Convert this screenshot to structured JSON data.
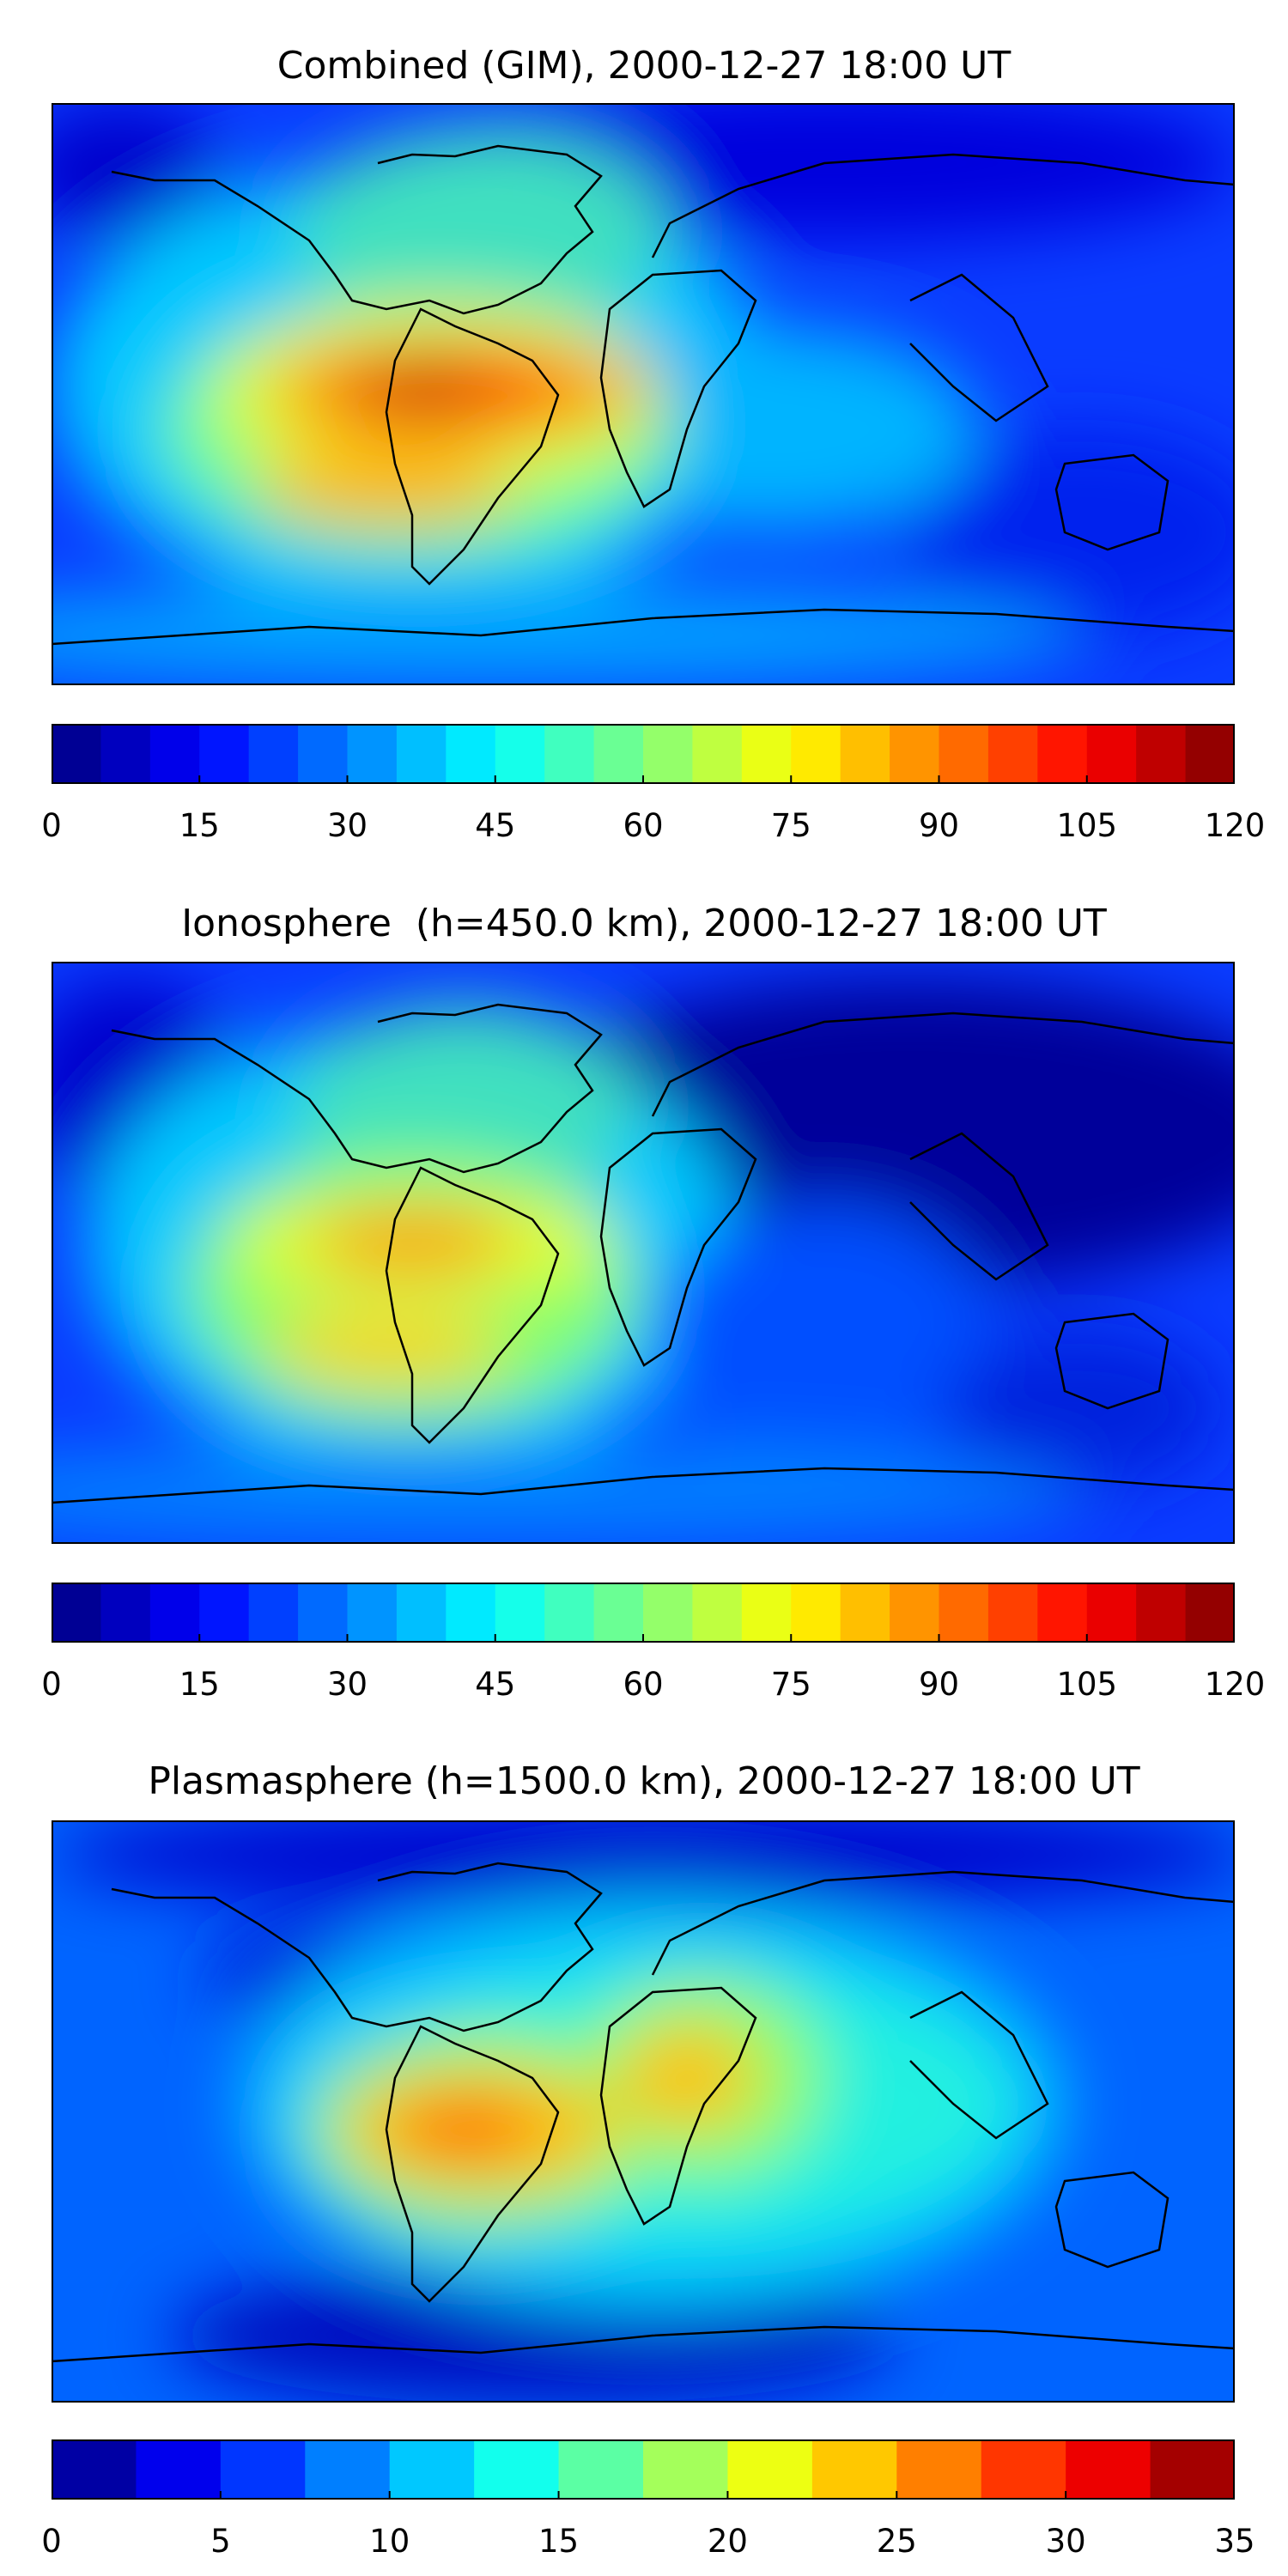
{
  "panels": [
    {
      "title": "Combined (GIM), 2000-12-27 18:00 UT",
      "colorbar": {
        "min": 0,
        "max": 120,
        "levels": 24,
        "tick_labels": [
          "0",
          "15",
          "30",
          "45",
          "60",
          "75",
          "90",
          "105",
          "120"
        ]
      }
    },
    {
      "title": "Ionosphere  (h=450.0 km), 2000-12-27 18:00 UT",
      "colorbar": {
        "min": 0,
        "max": 120,
        "levels": 24,
        "tick_labels": [
          "0",
          "15",
          "30",
          "45",
          "60",
          "75",
          "90",
          "105",
          "120"
        ]
      }
    },
    {
      "title": "Plasmasphere (h=1500.0 km), 2000-12-27 18:00 UT",
      "colorbar": {
        "min": 0,
        "max": 35,
        "levels": 14,
        "tick_labels": [
          "0",
          "5",
          "10",
          "15",
          "20",
          "25",
          "30",
          "35"
        ]
      }
    }
  ],
  "colors": {
    "colormap": [
      "#00007f",
      "#0000ff",
      "#007fff",
      "#00ffff",
      "#7fff7f",
      "#ffff00",
      "#ff7f00",
      "#ff0000",
      "#7f0000"
    ],
    "coastline": "#000000",
    "frame": "#000000"
  }
}
